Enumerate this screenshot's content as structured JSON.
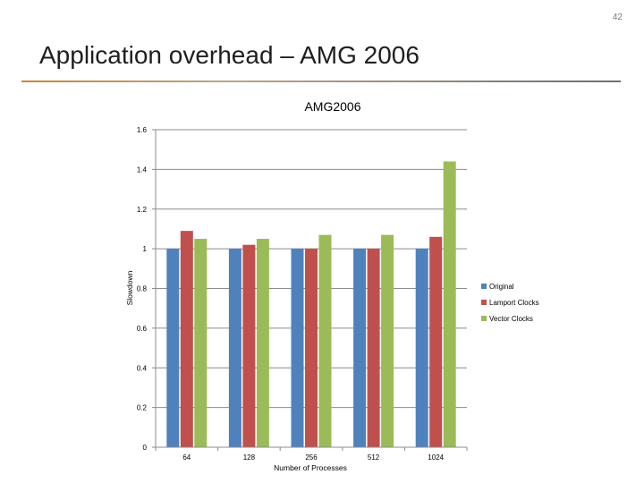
{
  "slide": {
    "number": "42",
    "title": "Application overhead – AMG 2006"
  },
  "chart_data": {
    "type": "bar",
    "title": "AMG2006",
    "xlabel": "Number of Processes",
    "ylabel": "Slowdown",
    "categories": [
      "64",
      "128",
      "256",
      "512",
      "1024"
    ],
    "ylim": [
      0,
      1.6
    ],
    "yticks": [
      0,
      0.2,
      0.4,
      0.6,
      0.8,
      1,
      1.2,
      1.4,
      1.6
    ],
    "ytick_labels": [
      "0",
      "0.2",
      "0.4",
      "0.6",
      "0.8",
      "1",
      "1.2",
      "1.4",
      "1.6"
    ],
    "grid": true,
    "legend_position": "right",
    "series": [
      {
        "name": "Original",
        "color": "#4f81bd",
        "values": [
          1.0,
          1.0,
          1.0,
          1.0,
          1.0
        ]
      },
      {
        "name": "Lamport Clocks",
        "color": "#c0504d",
        "values": [
          1.09,
          1.02,
          1.0,
          1.0,
          1.06
        ]
      },
      {
        "name": "Vector Clocks",
        "color": "#9bbb59",
        "values": [
          1.05,
          1.05,
          1.07,
          1.07,
          1.44
        ]
      }
    ]
  }
}
